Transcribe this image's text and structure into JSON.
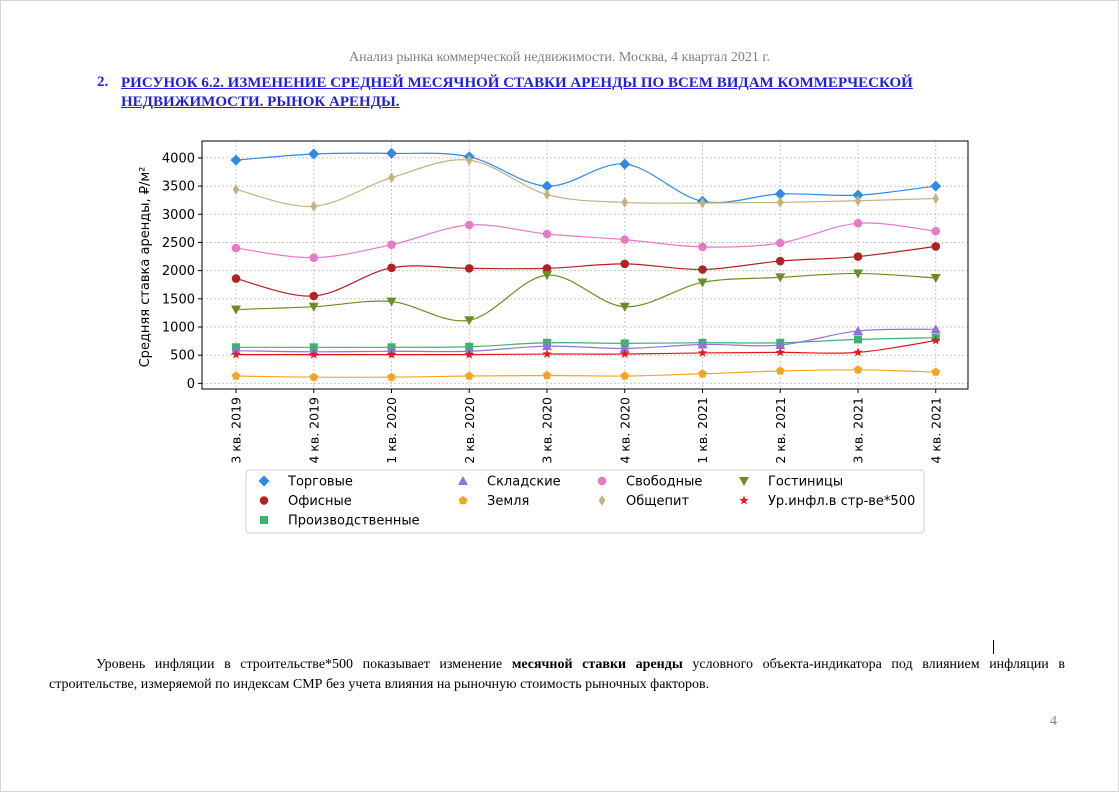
{
  "header": {
    "running_title": "Анализ рынка коммерческой недвижимости.  Москва, 4 квартал 2021 г."
  },
  "heading": {
    "number": "2.",
    "text": "РИСУНОК 6.2. ИЗМЕНЕНИЕ СРЕДНЕЙ МЕСЯЧНОЙ СТАВКИ АРЕНДЫ ПО ВСЕМ ВИДАМ КОММЕРЧЕСКОЙ НЕДВИЖИМОСТИ. РЫНОК АРЕНДЫ."
  },
  "chart_data": {
    "type": "line",
    "title": "",
    "xlabel": "",
    "ylabel": "Средняя ставка аренды, ₽/м²",
    "ylim": [
      -100,
      4300
    ],
    "yticks": [
      0,
      500,
      1000,
      1500,
      2000,
      2500,
      3000,
      3500,
      4000
    ],
    "grid": true,
    "legend_position": "below",
    "categories": [
      "3 кв. 2019",
      "4 кв. 2019",
      "1 кв. 2020",
      "2 кв. 2020",
      "3 кв. 2020",
      "4 кв. 2020",
      "1 кв. 2021",
      "2 кв. 2021",
      "3 кв. 2021",
      "4 кв. 2021"
    ],
    "series": [
      {
        "name": "Торговые",
        "color": "#2e8ae6",
        "marker": "diamond",
        "values": [
          3960,
          4070,
          4080,
          4020,
          3500,
          3890,
          3230,
          3360,
          3340,
          3500
        ]
      },
      {
        "name": "Офисные",
        "color": "#b22222",
        "marker": "circle",
        "values": [
          1860,
          1550,
          2050,
          2040,
          2040,
          2120,
          2020,
          2170,
          2250,
          2430
        ]
      },
      {
        "name": "Производственные",
        "color": "#3cb371",
        "marker": "square",
        "values": [
          640,
          640,
          640,
          650,
          720,
          710,
          720,
          720,
          780,
          810
        ]
      },
      {
        "name": "Складские",
        "color": "#9370db",
        "marker": "triangle-up",
        "values": [
          580,
          560,
          570,
          570,
          660,
          620,
          690,
          680,
          930,
          960
        ]
      },
      {
        "name": "Земля",
        "color": "#f4a623",
        "marker": "pentagon",
        "values": [
          130,
          110,
          110,
          130,
          140,
          130,
          170,
          220,
          240,
          200
        ]
      },
      {
        "name": "Свободные",
        "color": "#e879c5",
        "marker": "circle",
        "values": [
          2400,
          2230,
          2460,
          2810,
          2650,
          2550,
          2420,
          2490,
          2840,
          2700
        ]
      },
      {
        "name": "Общепит",
        "color": "#c2b280",
        "marker": "thin-diamond",
        "values": [
          3440,
          3140,
          3650,
          3960,
          3350,
          3210,
          3200,
          3210,
          3240,
          3280
        ]
      },
      {
        "name": "Гостиницы",
        "color": "#6b8e23",
        "marker": "triangle-down",
        "values": [
          1310,
          1360,
          1450,
          1120,
          1920,
          1360,
          1790,
          1880,
          1950,
          1870
        ]
      },
      {
        "name": "Ур.инфл.в стр-ве*500",
        "color": "#e31a1c",
        "marker": "star",
        "values": [
          510,
          510,
          510,
          510,
          520,
          520,
          540,
          550,
          550,
          760
        ]
      }
    ],
    "legend_order": [
      "Торговые",
      "Складские",
      "Свободные",
      "Гостиницы",
      "Офисные",
      "Земля",
      "Общепит",
      "Ур.инфл.в стр-ве*500",
      "Производственные"
    ]
  },
  "paragraph": {
    "before_bold": "Уровень инфляции в строительстве*500 показывает изменение ",
    "bold": "месячной ставки аренды",
    "after_bold": " условного объекта-индикатора под влиянием инфляции в строительстве, измеряемой по индексам СМР без учета влияния на рыночную стоимость рыночных факторов."
  },
  "page_number": "4"
}
